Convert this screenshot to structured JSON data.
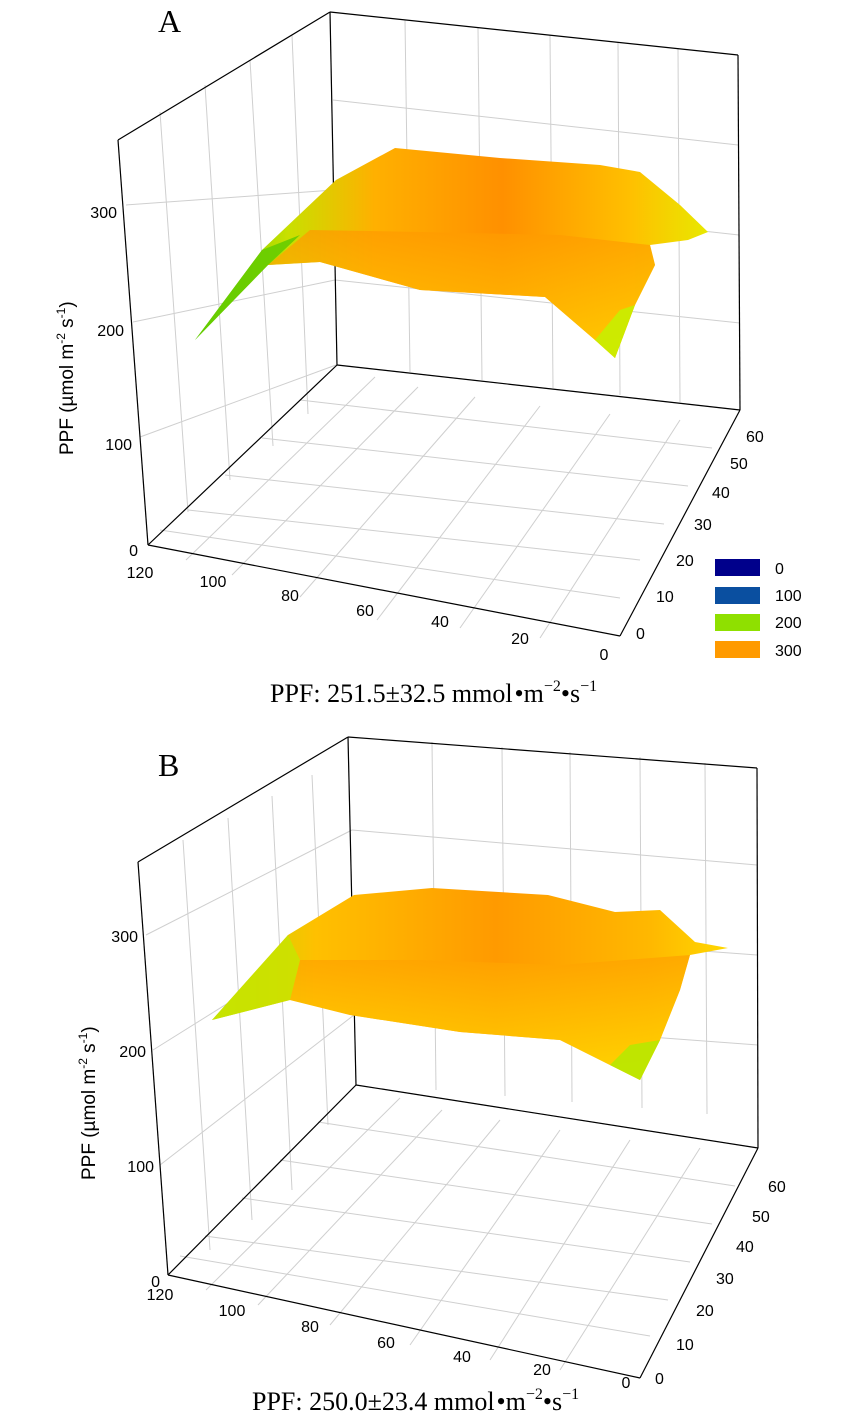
{
  "chart_data": [
    {
      "type": "surface",
      "panel_label": "A",
      "ylabel": "PPF (µmol m",
      "ylabel_exp1": "-2",
      "ylabel_mid": " s",
      "ylabel_exp2": "-1",
      "ylabel_end": ")",
      "z_ticks": [
        "0",
        "100",
        "200",
        "300"
      ],
      "x_ticks": [
        "120",
        "100",
        "80",
        "60",
        "40",
        "20",
        "0"
      ],
      "y_ticks": [
        "0",
        "10",
        "20",
        "30",
        "40",
        "50",
        "60"
      ],
      "x_range": [
        0,
        120
      ],
      "y_range": [
        0,
        60
      ],
      "z_range": [
        0,
        350
      ],
      "surface_summary": {
        "mean": 251.5,
        "sd": 32.5,
        "min_approx": 190,
        "max_approx": 300
      },
      "caption_prefix": "PPF: 251.5±32.5 mmol",
      "caption_unit_m": "m",
      "caption_exp_m": "−2",
      "caption_unit_s": "s",
      "caption_exp_s": "−1",
      "legend": [
        {
          "label": "0",
          "color": "#00008b"
        },
        {
          "label": "100",
          "color": "#0a4fa0"
        },
        {
          "label": "200",
          "color": "#8fe000"
        },
        {
          "label": "300",
          "color": "#ff9a00"
        }
      ]
    },
    {
      "type": "surface",
      "panel_label": "B",
      "ylabel": "PPF (µmol m",
      "ylabel_exp1": "-2",
      "ylabel_mid": " s",
      "ylabel_exp2": "-1",
      "ylabel_end": ")",
      "z_ticks": [
        "0",
        "100",
        "200",
        "300"
      ],
      "x_ticks": [
        "120",
        "100",
        "80",
        "60",
        "40",
        "20",
        "0"
      ],
      "y_ticks": [
        "0",
        "10",
        "20",
        "30",
        "40",
        "50",
        "60"
      ],
      "x_range": [
        0,
        120
      ],
      "y_range": [
        0,
        60
      ],
      "z_range": [
        0,
        350
      ],
      "surface_summary": {
        "mean": 250.0,
        "sd": 23.4,
        "min_approx": 215,
        "max_approx": 295
      },
      "caption_prefix": "PPF: 250.0±23.4 mmol",
      "caption_unit_m": "m",
      "caption_exp_m": "−2",
      "caption_unit_s": "s",
      "caption_exp_s": "−1"
    }
  ]
}
